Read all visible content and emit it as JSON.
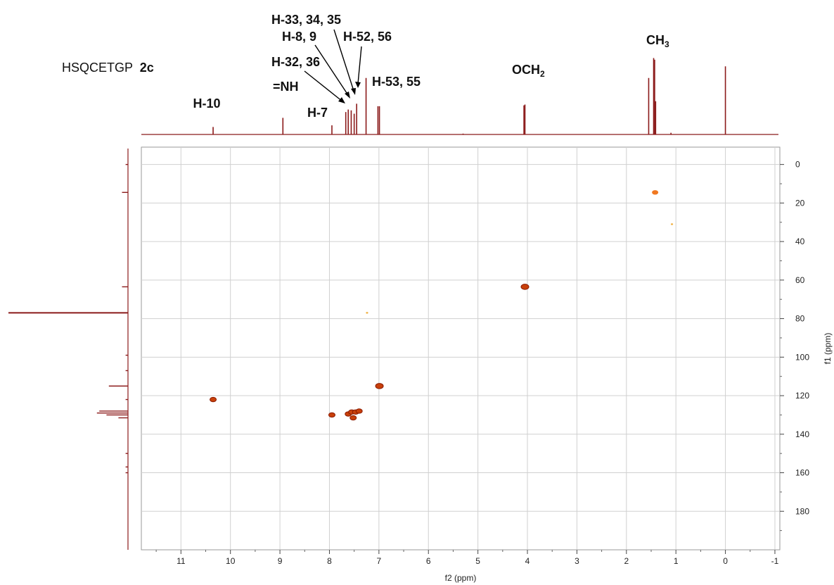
{
  "chart_data": {
    "type": "scatter",
    "title": {
      "prefix": "HSQCETGP",
      "compound": "2c"
    },
    "xlabel": "f2 (ppm)",
    "ylabel": "f1 (ppm)",
    "xlim": [
      11.8,
      -1.1
    ],
    "ylim": [
      -9,
      200
    ],
    "x_ticks": [
      11,
      10,
      9,
      8,
      7,
      6,
      5,
      4,
      3,
      2,
      1,
      0,
      -1
    ],
    "y_ticks": [
      0,
      20,
      40,
      60,
      80,
      100,
      120,
      140,
      160,
      180
    ],
    "grid": true,
    "cross_peaks": [
      {
        "x": 10.35,
        "y": 122,
        "size": "medium"
      },
      {
        "x": 7.95,
        "y": 130,
        "size": "medium"
      },
      {
        "x": 7.62,
        "y": 129.5,
        "size": "medium"
      },
      {
        "x": 7.55,
        "y": 128.5,
        "size": "medium"
      },
      {
        "x": 7.47,
        "y": 128.5,
        "size": "medium"
      },
      {
        "x": 7.4,
        "y": 128,
        "size": "medium"
      },
      {
        "x": 7.52,
        "y": 131.5,
        "size": "medium"
      },
      {
        "x": 6.99,
        "y": 115,
        "size": "large"
      },
      {
        "x": 4.05,
        "y": 63.5,
        "size": "large"
      },
      {
        "x": 1.42,
        "y": 14.5,
        "size": "medium",
        "color": "#f07820"
      },
      {
        "x": 1.08,
        "y": 31,
        "size": "tiny",
        "color": "#f0b040"
      },
      {
        "x": 7.24,
        "y": 77,
        "size": "tiny",
        "color": "#f0b040"
      }
    ],
    "proton_spectrum": [
      {
        "x": 10.35,
        "h": 0.09
      },
      {
        "x": 8.94,
        "h": 0.2
      },
      {
        "x": 7.95,
        "h": 0.11
      },
      {
        "x": 7.67,
        "h": 0.27
      },
      {
        "x": 7.62,
        "h": 0.3
      },
      {
        "x": 7.56,
        "h": 0.29
      },
      {
        "x": 7.5,
        "h": 0.25
      },
      {
        "x": 7.45,
        "h": 0.37
      },
      {
        "x": 7.26,
        "h": 0.68
      },
      {
        "x": 7.02,
        "h": 0.34
      },
      {
        "x": 6.99,
        "h": 0.34
      },
      {
        "x": 5.3,
        "h": 0.01
      },
      {
        "x": 4.07,
        "h": 0.35
      },
      {
        "x": 4.05,
        "h": 0.36
      },
      {
        "x": 1.55,
        "h": 0.68
      },
      {
        "x": 1.45,
        "h": 0.92
      },
      {
        "x": 1.43,
        "h": 0.9
      },
      {
        "x": 1.41,
        "h": 0.4
      },
      {
        "x": 1.1,
        "h": 0.02
      },
      {
        "x": 0.0,
        "h": 0.82
      }
    ],
    "carbon_spectrum": [
      {
        "y": 0,
        "h": 0.02
      },
      {
        "y": 14.5,
        "h": 0.05
      },
      {
        "y": 63.5,
        "h": 0.05
      },
      {
        "y": 77,
        "h": 1.0
      },
      {
        "y": 99,
        "h": 0.02
      },
      {
        "y": 107,
        "h": 0.02
      },
      {
        "y": 115,
        "h": 0.16
      },
      {
        "y": 122,
        "h": 0.02
      },
      {
        "y": 128,
        "h": 0.24
      },
      {
        "y": 129,
        "h": 0.26
      },
      {
        "y": 130,
        "h": 0.18
      },
      {
        "y": 131.5,
        "h": 0.08
      },
      {
        "y": 150,
        "h": 0.02
      },
      {
        "y": 157,
        "h": 0.02
      },
      {
        "y": 160,
        "h": 0.02
      }
    ],
    "annotations": [
      {
        "id": "h10",
        "text": "H-10"
      },
      {
        "id": "nh",
        "text": "=NH"
      },
      {
        "id": "h7",
        "text": "H-7"
      },
      {
        "id": "h3236",
        "text": "H-32, 36"
      },
      {
        "id": "h89",
        "text": "H-8, 9"
      },
      {
        "id": "h333435",
        "text": "H-33, 34, 35"
      },
      {
        "id": "h5256",
        "text": "H-52, 56"
      },
      {
        "id": "h5355",
        "text": "H-53, 55"
      },
      {
        "id": "och2",
        "text": "OCH",
        "sub": "2"
      },
      {
        "id": "ch3",
        "text": "CH",
        "sub": "3"
      }
    ],
    "colors": {
      "trace": "#8b1a1a",
      "peak": "#c8400a",
      "peak_edge": "#8b1a00",
      "grid": "#d0d0d0"
    }
  }
}
